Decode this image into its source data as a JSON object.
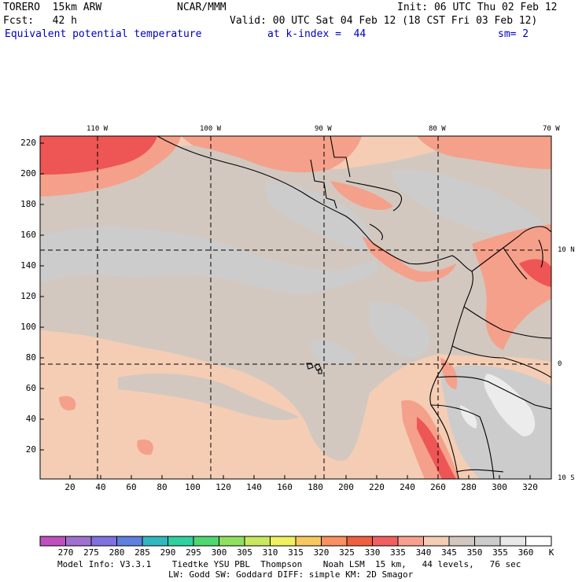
{
  "header": {
    "model": "TORERO  15km ARW",
    "center": "NCAR/MMM",
    "init": "Init: 06 UTC Thu 02 Feb 12",
    "fcst": "Fcst:   42 h",
    "valid": "Valid: 00 UTC Sat 04 Feb 12 (18 CST Fri 03 Feb 12)",
    "field": "Equivalent potential temperature",
    "level": "at k-index =  44",
    "smooth": "sm= 2"
  },
  "map": {
    "lon_labels": [
      "110 W",
      "100 W",
      "90 W",
      "80 W",
      "70 W"
    ],
    "lat_labels": [
      "10 N",
      "0",
      "10 S"
    ],
    "y_ticks": [
      "220",
      "200",
      "180",
      "160",
      "140",
      "120",
      "100",
      "80",
      "60",
      "40",
      "20"
    ],
    "x_ticks": [
      "20",
      "40",
      "60",
      "80",
      "100",
      "120",
      "140",
      "160",
      "180",
      "200",
      "220",
      "240",
      "260",
      "280",
      "300",
      "320"
    ],
    "colors": {
      "land_border": "#000000",
      "grid": "#000000",
      "c335": "#ee5555",
      "c340": "#f5a08a",
      "c345": "#f4cdb4",
      "c350": "#d2c8c0",
      "c355": "#cccccc",
      "c360": "#ececec"
    }
  },
  "colorbar": {
    "labels": [
      "270",
      "275",
      "280",
      "285",
      "290",
      "295",
      "300",
      "305",
      "310",
      "315",
      "320",
      "325",
      "330",
      "335",
      "340",
      "345",
      "350",
      "355",
      "360",
      "K"
    ],
    "colors": [
      "#c050c0",
      "#a070d0",
      "#8070e0",
      "#6080e0",
      "#30b8c0",
      "#30d0a0",
      "#50d870",
      "#90e060",
      "#c8e860",
      "#f0f060",
      "#f8c860",
      "#f89060",
      "#f06040",
      "#f06060",
      "#f8a090",
      "#f4cdb4",
      "#d2c8c0",
      "#cccccc",
      "#e8e8e8",
      "#ffffff"
    ]
  },
  "footer": {
    "line1": "Model Info: V3.3.1    Tiedtke YSU PBL  Thompson    Noah LSM  15 km,   44 levels,   76 sec",
    "line2": "LW: Godd SW: Goddard DIFF: simple KM: 2D Smagor"
  }
}
